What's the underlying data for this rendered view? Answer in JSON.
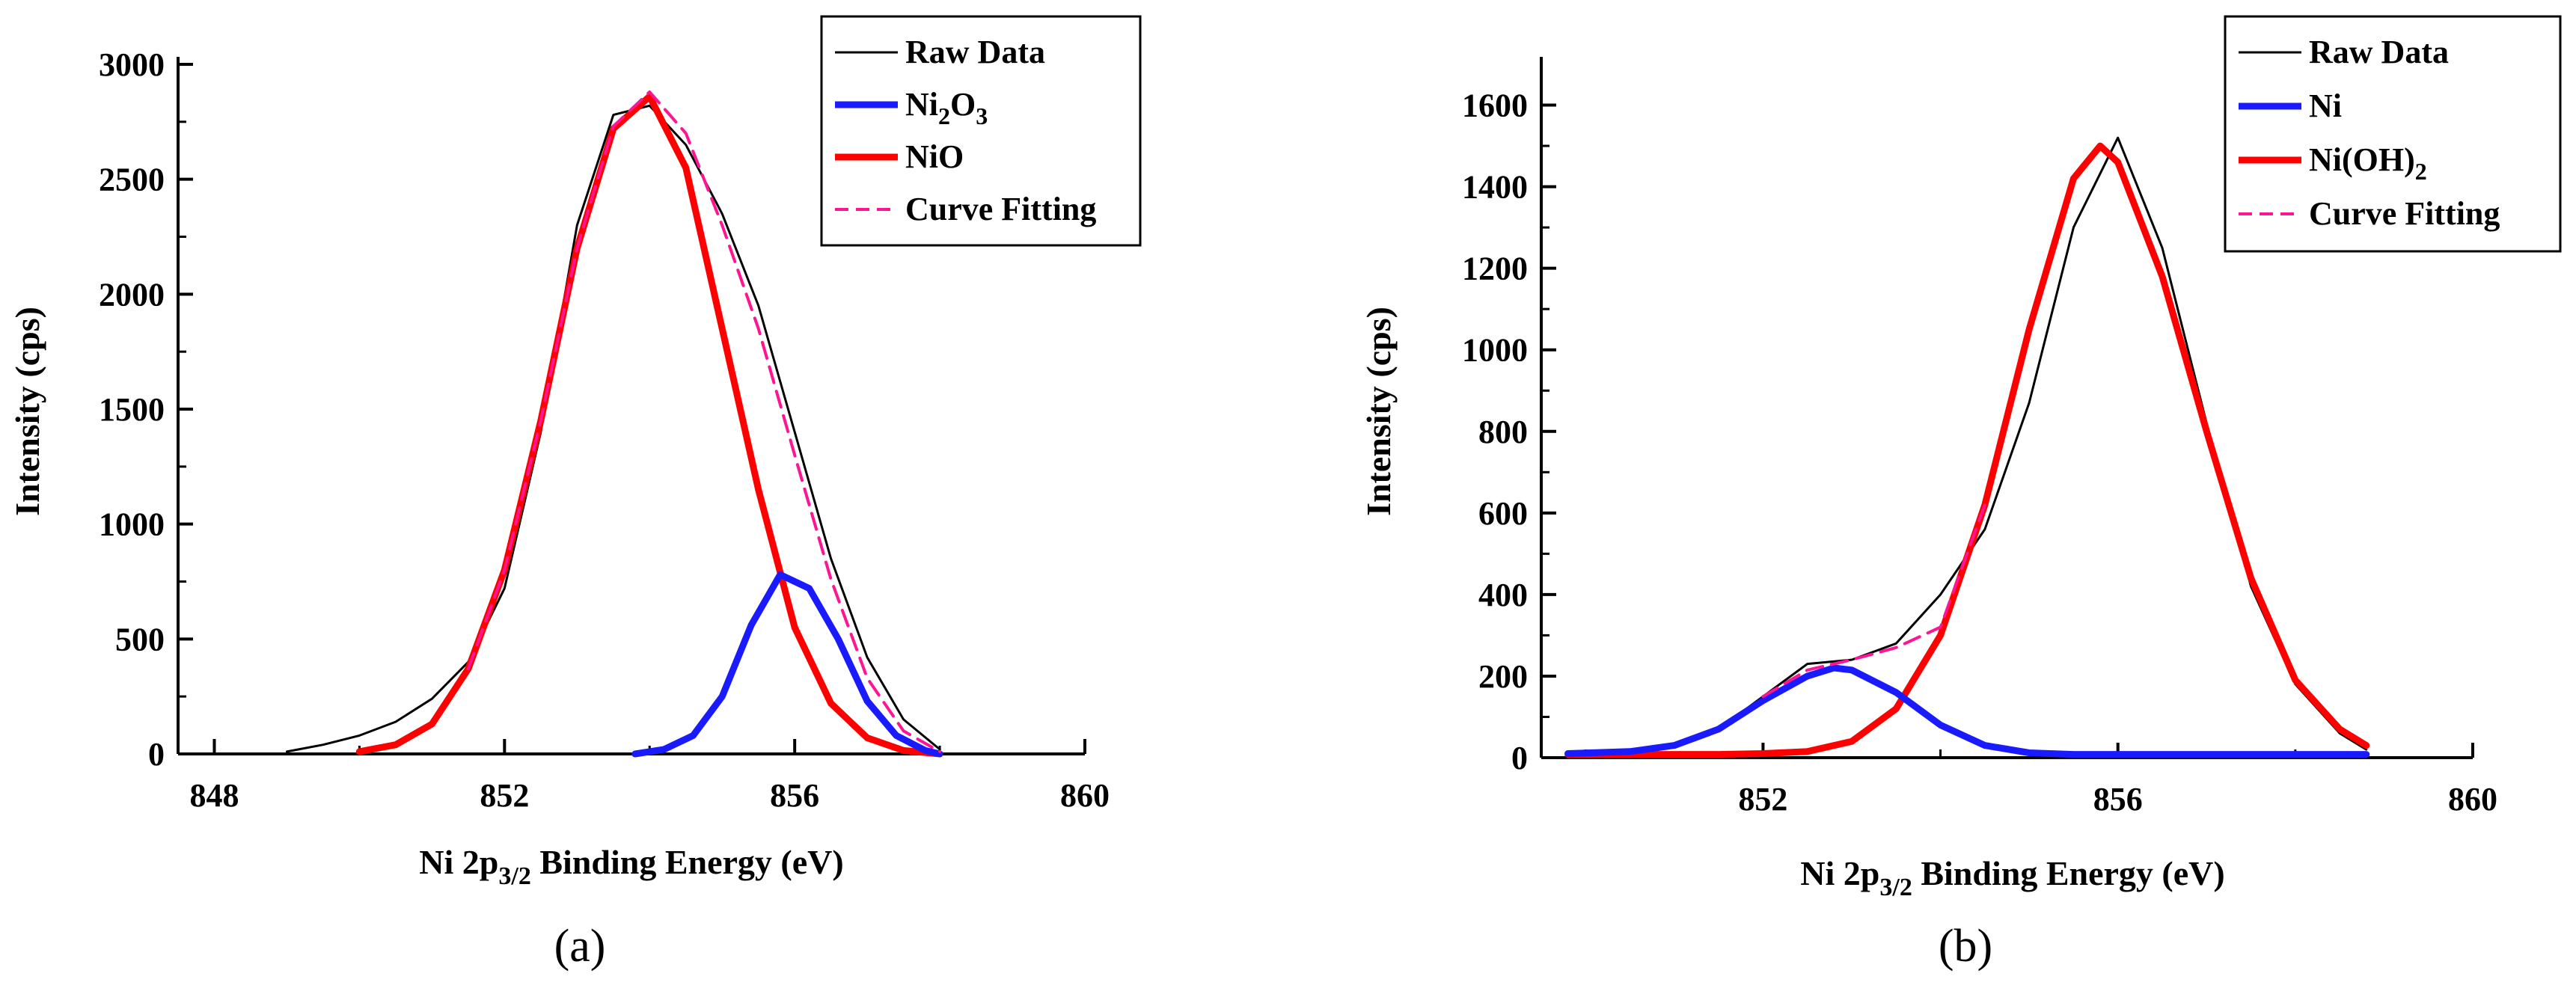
{
  "chart_data": [
    {
      "panel_label": "(a)",
      "type": "line",
      "xlabel": {
        "pre": "Ni 2p",
        "sub": "3/2",
        "post": " Binding Energy (eV)"
      },
      "ylabel": "Intensity (cps)",
      "xlim": [
        847.5,
        860
      ],
      "ylim": [
        0,
        3000
      ],
      "xticks": [
        848,
        852,
        856,
        860
      ],
      "xtick_labels": [
        "848",
        "852",
        "856",
        "860"
      ],
      "yticks": [
        0,
        500,
        1000,
        1500,
        2000,
        2500,
        3000
      ],
      "ytick_labels": [
        "0",
        "500",
        "1000",
        "1500",
        "2000",
        "2500",
        "3000"
      ],
      "legend_position": "top-right",
      "series": [
        {
          "name": "Raw Data",
          "label": {
            "pre": "Raw Data"
          },
          "color": "#000000",
          "style": "solid",
          "width": 3,
          "x": [
            849,
            849.5,
            850,
            850.5,
            851,
            851.5,
            852,
            852.5,
            853,
            853.5,
            854,
            854.5,
            855,
            855.5,
            856,
            856.5,
            857,
            857.5,
            858
          ],
          "y": [
            10,
            40,
            80,
            140,
            240,
            400,
            720,
            1400,
            2300,
            2780,
            2820,
            2650,
            2350,
            1950,
            1400,
            850,
            420,
            150,
            20
          ]
        },
        {
          "name": "Ni2O3",
          "label": {
            "pre": "Ni",
            "sub1": "2",
            "mid": "O",
            "sub2": "3"
          },
          "color": "#1a1aff",
          "style": "solid",
          "width": 9,
          "x": [
            853.8,
            854.2,
            854.6,
            855,
            855.4,
            855.8,
            856.2,
            856.6,
            857,
            857.4,
            857.8,
            858
          ],
          "y": [
            0,
            20,
            80,
            250,
            560,
            780,
            720,
            500,
            230,
            80,
            15,
            0
          ]
        },
        {
          "name": "NiO",
          "label": {
            "pre": "NiO"
          },
          "color": "#ff0000",
          "style": "solid",
          "width": 9,
          "x": [
            850,
            850.5,
            851,
            851.5,
            852,
            852.5,
            853,
            853.5,
            854,
            854.5,
            855,
            855.5,
            856,
            856.5,
            857,
            857.5,
            858
          ],
          "y": [
            10,
            40,
            130,
            370,
            800,
            1450,
            2200,
            2720,
            2860,
            2550,
            1850,
            1150,
            550,
            220,
            70,
            15,
            0
          ]
        },
        {
          "name": "Curve Fitting",
          "label": {
            "pre": "Curve Fitting"
          },
          "color": "#ff1493",
          "style": "dashed",
          "width": 4,
          "x": [
            851.5,
            852,
            852.5,
            853,
            853.5,
            854,
            854.5,
            855,
            855.5,
            856,
            856.5,
            857,
            857.5,
            858
          ],
          "y": [
            370,
            800,
            1450,
            2200,
            2730,
            2880,
            2700,
            2300,
            1850,
            1300,
            760,
            330,
            100,
            10
          ]
        }
      ]
    },
    {
      "panel_label": "(b)",
      "type": "line",
      "xlabel": {
        "pre": "Ni 2p",
        "sub": "3/2",
        "post": " Binding Energy (eV)"
      },
      "ylabel": "Intensity (cps)",
      "xlim": [
        849.5,
        860
      ],
      "ylim": [
        0,
        1700
      ],
      "xticks": [
        852,
        856,
        860
      ],
      "xtick_labels": [
        "852",
        "856",
        "860"
      ],
      "yticks": [
        0,
        200,
        400,
        600,
        800,
        1000,
        1200,
        1400,
        1600
      ],
      "ytick_labels": [
        "0",
        "200",
        "400",
        "600",
        "800",
        "1000",
        "1200",
        "1400",
        "1600"
      ],
      "legend_position": "top-right",
      "series": [
        {
          "name": "Raw Data",
          "label": {
            "pre": "Raw Data"
          },
          "color": "#000000",
          "style": "solid",
          "width": 3,
          "x": [
            849.8,
            850.5,
            851,
            851.5,
            852,
            852.5,
            853,
            853.5,
            854,
            854.5,
            855,
            855.5,
            856,
            856.5,
            857,
            857.5,
            858,
            858.5,
            858.8
          ],
          "y": [
            10,
            15,
            30,
            70,
            150,
            230,
            240,
            280,
            400,
            560,
            870,
            1300,
            1520,
            1250,
            820,
            420,
            180,
            60,
            20
          ]
        },
        {
          "name": "Ni",
          "label": {
            "pre": "Ni"
          },
          "color": "#1a1aff",
          "style": "solid",
          "width": 9,
          "x": [
            849.8,
            850.5,
            851,
            851.5,
            852,
            852.5,
            852.8,
            853,
            853.5,
            854,
            854.5,
            855,
            855.5,
            856,
            857,
            858,
            858.8
          ],
          "y": [
            10,
            15,
            30,
            70,
            140,
            200,
            220,
            215,
            160,
            80,
            30,
            12,
            8,
            8,
            8,
            8,
            8
          ]
        },
        {
          "name": "Ni(OH)2",
          "label": {
            "pre": "Ni(OH)",
            "sub1": "2"
          },
          "color": "#ff0000",
          "style": "solid",
          "width": 9,
          "x": [
            849.8,
            850.5,
            851,
            851.5,
            852,
            852.5,
            853,
            853.5,
            854,
            854.5,
            855,
            855.5,
            855.8,
            856,
            856.5,
            857,
            857.5,
            858,
            858.5,
            858.8
          ],
          "y": [
            8,
            8,
            8,
            8,
            10,
            15,
            40,
            120,
            300,
            620,
            1050,
            1420,
            1500,
            1460,
            1180,
            800,
            440,
            190,
            70,
            30
          ]
        },
        {
          "name": "Curve Fitting",
          "label": {
            "pre": "Curve Fitting"
          },
          "color": "#ff1493",
          "style": "dashed",
          "width": 4,
          "x": [
            852,
            852.5,
            853,
            853.5,
            854,
            854.5
          ],
          "y": [
            150,
            215,
            240,
            270,
            320,
            620
          ]
        }
      ]
    }
  ]
}
